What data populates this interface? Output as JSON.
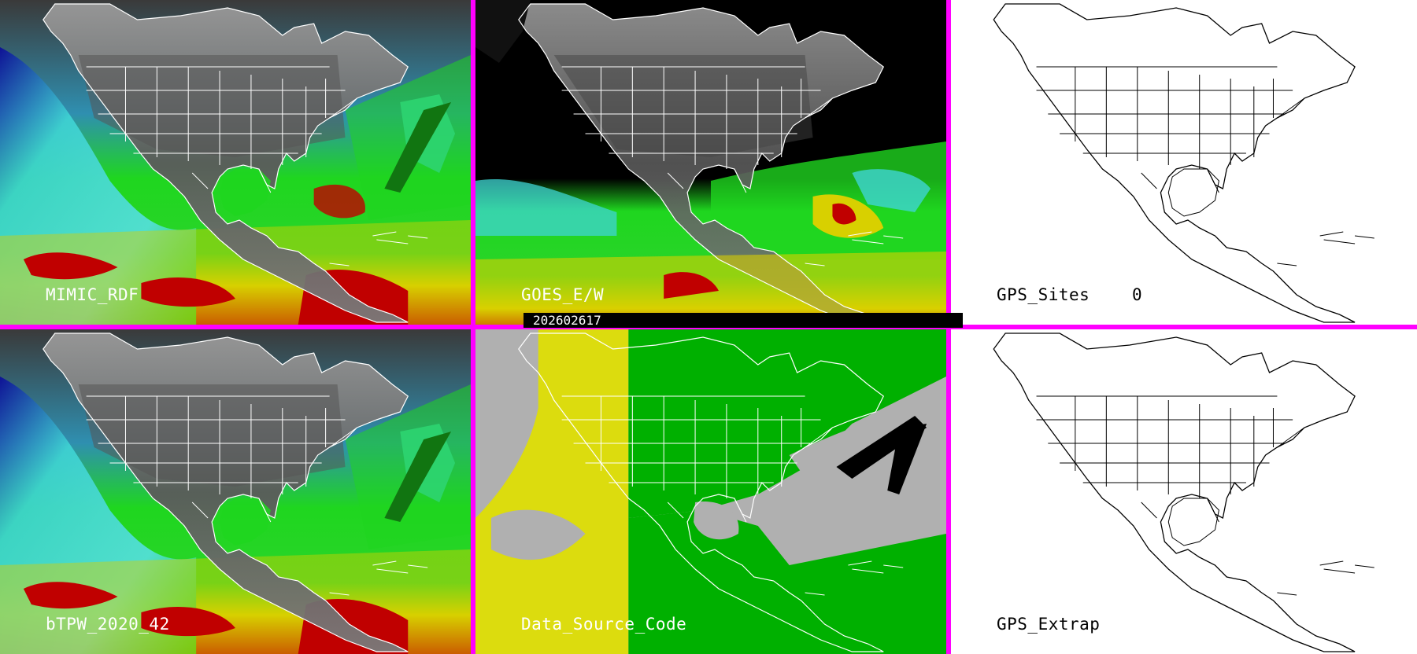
{
  "timestamp": "202602617",
  "colors": {
    "border": "#ff00ff",
    "ocean_cyan": "#3fd4d4",
    "moist_green": "#1fd61f",
    "very_moist_yellow": "#d8d000",
    "extreme_red": "#c00000",
    "dry_blue": "#0a0a9a",
    "land_gray": "#6a6a6a",
    "source_gray": "#b0b0b0",
    "source_green": "#00b000",
    "source_yellow": "#e0e000"
  },
  "panels": [
    {
      "id": "mimic",
      "label": "MIMIC_RDF",
      "style": "tpw"
    },
    {
      "id": "goes",
      "label": "GOES_E/W",
      "style": "goes"
    },
    {
      "id": "gps-sites",
      "label": "GPS_Sites",
      "count": "0",
      "style": "outline"
    },
    {
      "id": "btpw",
      "label": "bTPW_2020_42",
      "style": "tpw"
    },
    {
      "id": "source",
      "label": "Data_Source_Code",
      "style": "source"
    },
    {
      "id": "gps-extrap",
      "label": "GPS_Extrap",
      "style": "outline"
    }
  ]
}
